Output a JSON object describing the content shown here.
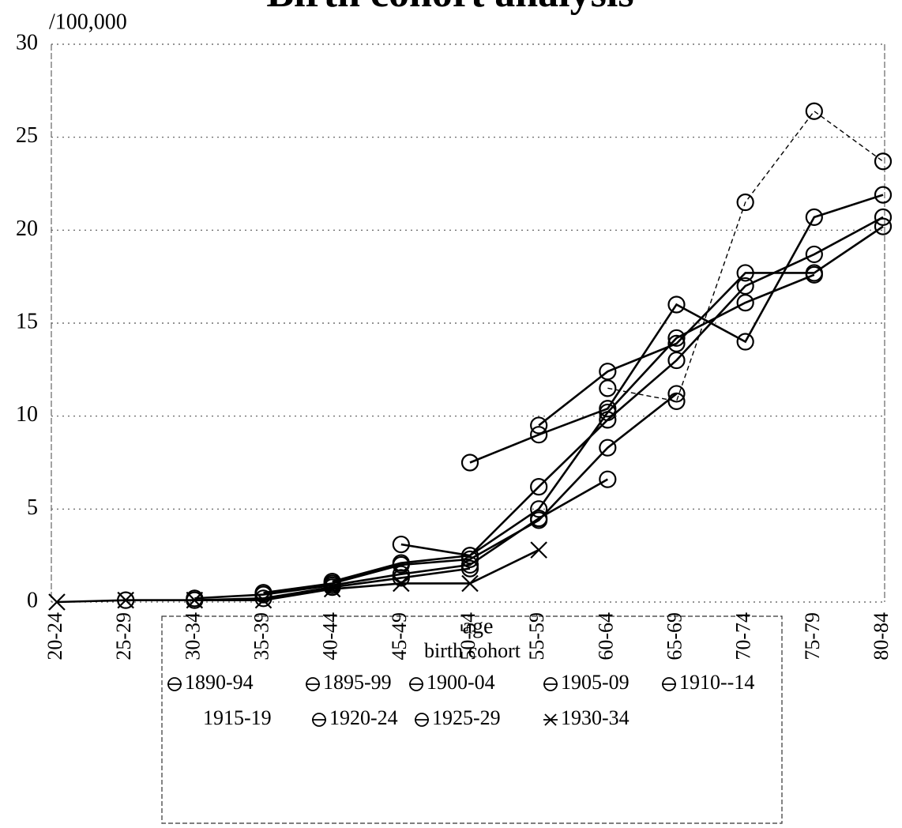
{
  "chart_data": {
    "type": "line",
    "title": "Birth cohort analysis",
    "y_unit": "/100,000",
    "x_label": "age",
    "legend_title": "birth cohort",
    "categories": [
      "20-24",
      "25-29",
      "30-34",
      "35-39",
      "40-44",
      "45-49",
      "50-54",
      "55-59",
      "60-64",
      "65-69",
      "70-74",
      "75-79",
      "80-84"
    ],
    "ylim": [
      0,
      30
    ],
    "yticks": [
      0,
      5,
      10,
      15,
      20,
      25,
      30
    ],
    "grid": true,
    "series": [
      {
        "name": "1890-94",
        "color": "#000000",
        "marker": "circle",
        "dashed": true,
        "values": [
          null,
          null,
          null,
          null,
          null,
          null,
          null,
          null,
          11.5,
          10.8,
          21.5,
          26.4,
          23.7
        ]
      },
      {
        "name": "1895-99",
        "color": "#000000",
        "marker": "circle",
        "values": [
          null,
          null,
          null,
          null,
          null,
          null,
          null,
          9.5,
          12.4,
          13.9,
          17.7,
          17.7,
          20.2
        ]
      },
      {
        "name": "1900-04",
        "color": "#000000",
        "marker": "circle",
        "values": [
          null,
          null,
          null,
          null,
          null,
          null,
          7.5,
          9.0,
          10.4,
          16.0,
          14.0,
          20.7,
          21.9
        ]
      },
      {
        "name": "1905-09",
        "color": "#000000",
        "marker": "circle",
        "values": [
          null,
          null,
          null,
          null,
          null,
          3.1,
          2.5,
          6.2,
          9.8,
          13.0,
          17.0,
          18.7,
          20.7
        ]
      },
      {
        "name": "1910--14",
        "color": "#000000",
        "marker": "circle",
        "values": [
          null,
          null,
          null,
          null,
          1.1,
          2.1,
          2.5,
          5.0,
          10.2,
          14.2,
          16.1,
          17.6,
          null
        ]
      },
      {
        "name": "1915-19",
        "color": "#000000",
        "marker": "circle",
        "values": [
          null,
          null,
          null,
          0.5,
          1.0,
          2.0,
          2.3,
          4.4,
          8.3,
          11.2,
          null,
          null,
          null
        ]
      },
      {
        "name": "1920-24",
        "color": "#000000",
        "marker": "circle",
        "values": [
          null,
          null,
          0.2,
          0.4,
          0.9,
          1.5,
          2.0,
          4.5,
          6.6,
          null,
          null,
          null,
          null
        ]
      },
      {
        "name": "1925-29",
        "color": "#000000",
        "marker": "circle",
        "values": [
          null,
          0.1,
          0.1,
          0.2,
          0.8,
          1.3,
          1.8,
          null,
          null,
          null,
          null,
          null,
          null
        ]
      },
      {
        "name": "1930-34",
        "color": "#000000",
        "marker": "x",
        "values": [
          0,
          0.1,
          0.1,
          0.1,
          0.7,
          1.0,
          1.0,
          2.8,
          null,
          null,
          null,
          null,
          null
        ]
      }
    ]
  }
}
